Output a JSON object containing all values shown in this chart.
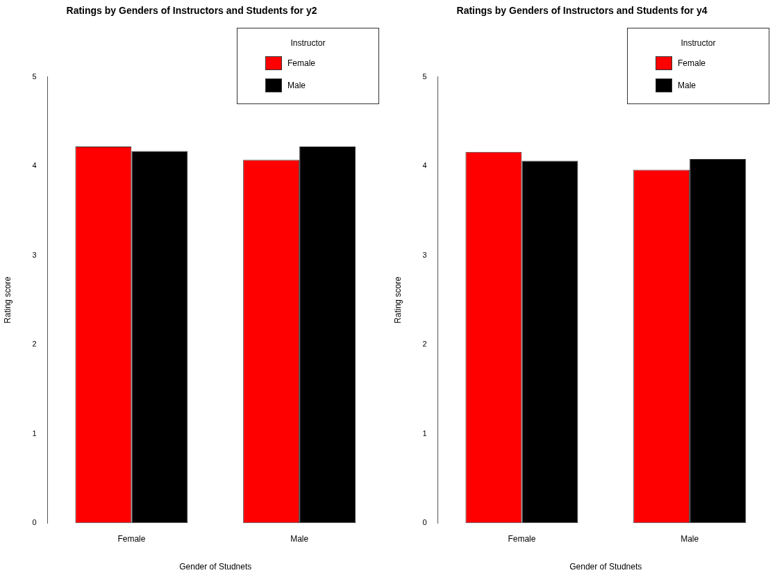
{
  "chart_data": [
    {
      "type": "bar",
      "title": "Ratings by Genders of Instructors and Students for y2",
      "xlabel": "Gender of Studnets",
      "ylabel": "Rating score",
      "legend_title": "Instructor",
      "legend": "top right",
      "categories": [
        "Female",
        "Male"
      ],
      "ylim": [
        0,
        5
      ],
      "yticks": [
        0,
        1,
        2,
        3,
        4,
        5
      ],
      "series": [
        {
          "name": "Female",
          "color": "#ff0000",
          "values": [
            4.22,
            4.07
          ]
        },
        {
          "name": "Male",
          "color": "#000000",
          "values": [
            4.17,
            4.22
          ]
        }
      ]
    },
    {
      "type": "bar",
      "title": "Ratings by Genders of Instructors and Students for y4",
      "xlabel": "Gender of Studnets",
      "ylabel": "Rating score",
      "legend_title": "Instructor",
      "legend": "top right",
      "categories": [
        "Female",
        "Male"
      ],
      "ylim": [
        0,
        5
      ],
      "yticks": [
        0,
        1,
        2,
        3,
        4,
        5
      ],
      "series": [
        {
          "name": "Female",
          "color": "#ff0000",
          "values": [
            4.16,
            3.96
          ]
        },
        {
          "name": "Male",
          "color": "#000000",
          "values": [
            4.06,
            4.08
          ]
        }
      ]
    }
  ]
}
